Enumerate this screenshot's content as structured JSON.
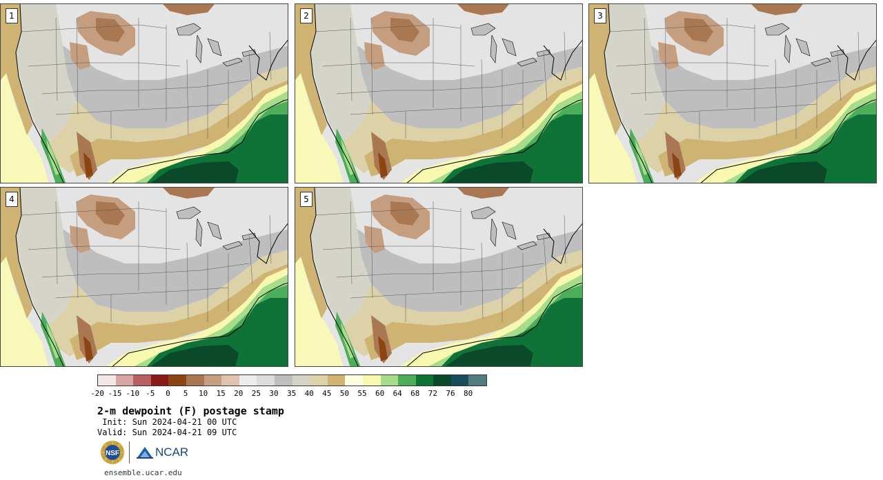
{
  "panels": [
    {
      "label": "1"
    },
    {
      "label": "2"
    },
    {
      "label": "3"
    },
    {
      "label": "4"
    },
    {
      "label": "5"
    }
  ],
  "colorbar": {
    "colors": [
      "#f3e8e8",
      "#d8a4a4",
      "#b86060",
      "#8b1a1a",
      "#8b4513",
      "#a97853",
      "#c59d7f",
      "#e0c3ae",
      "#ececec",
      "#dcdcdc",
      "#bebebe",
      "#d4d4c8",
      "#ddd1a8",
      "#cfb372",
      "#fdfde0",
      "#f8f8b0",
      "#a6dc8a",
      "#4cae5b",
      "#0f7236",
      "#0a4a2a",
      "#1b4e5c",
      "#517b7e"
    ],
    "ticks": [
      "-20",
      "-15",
      "-10",
      "-5",
      "0",
      "5",
      "10",
      "15",
      "20",
      "25",
      "30",
      "35",
      "40",
      "45",
      "50",
      "55",
      "60",
      "64",
      "68",
      "72",
      "76",
      "80"
    ]
  },
  "title": "2-m dewpoint (F) postage stamp",
  "init": " Init: Sun 2024-04-21 00 UTC",
  "valid": "Valid: Sun 2024-04-21 09 UTC",
  "logos": {
    "nsf": "NSF",
    "ncar": "NCAR"
  },
  "url": "ensemble.ucar.edu"
}
